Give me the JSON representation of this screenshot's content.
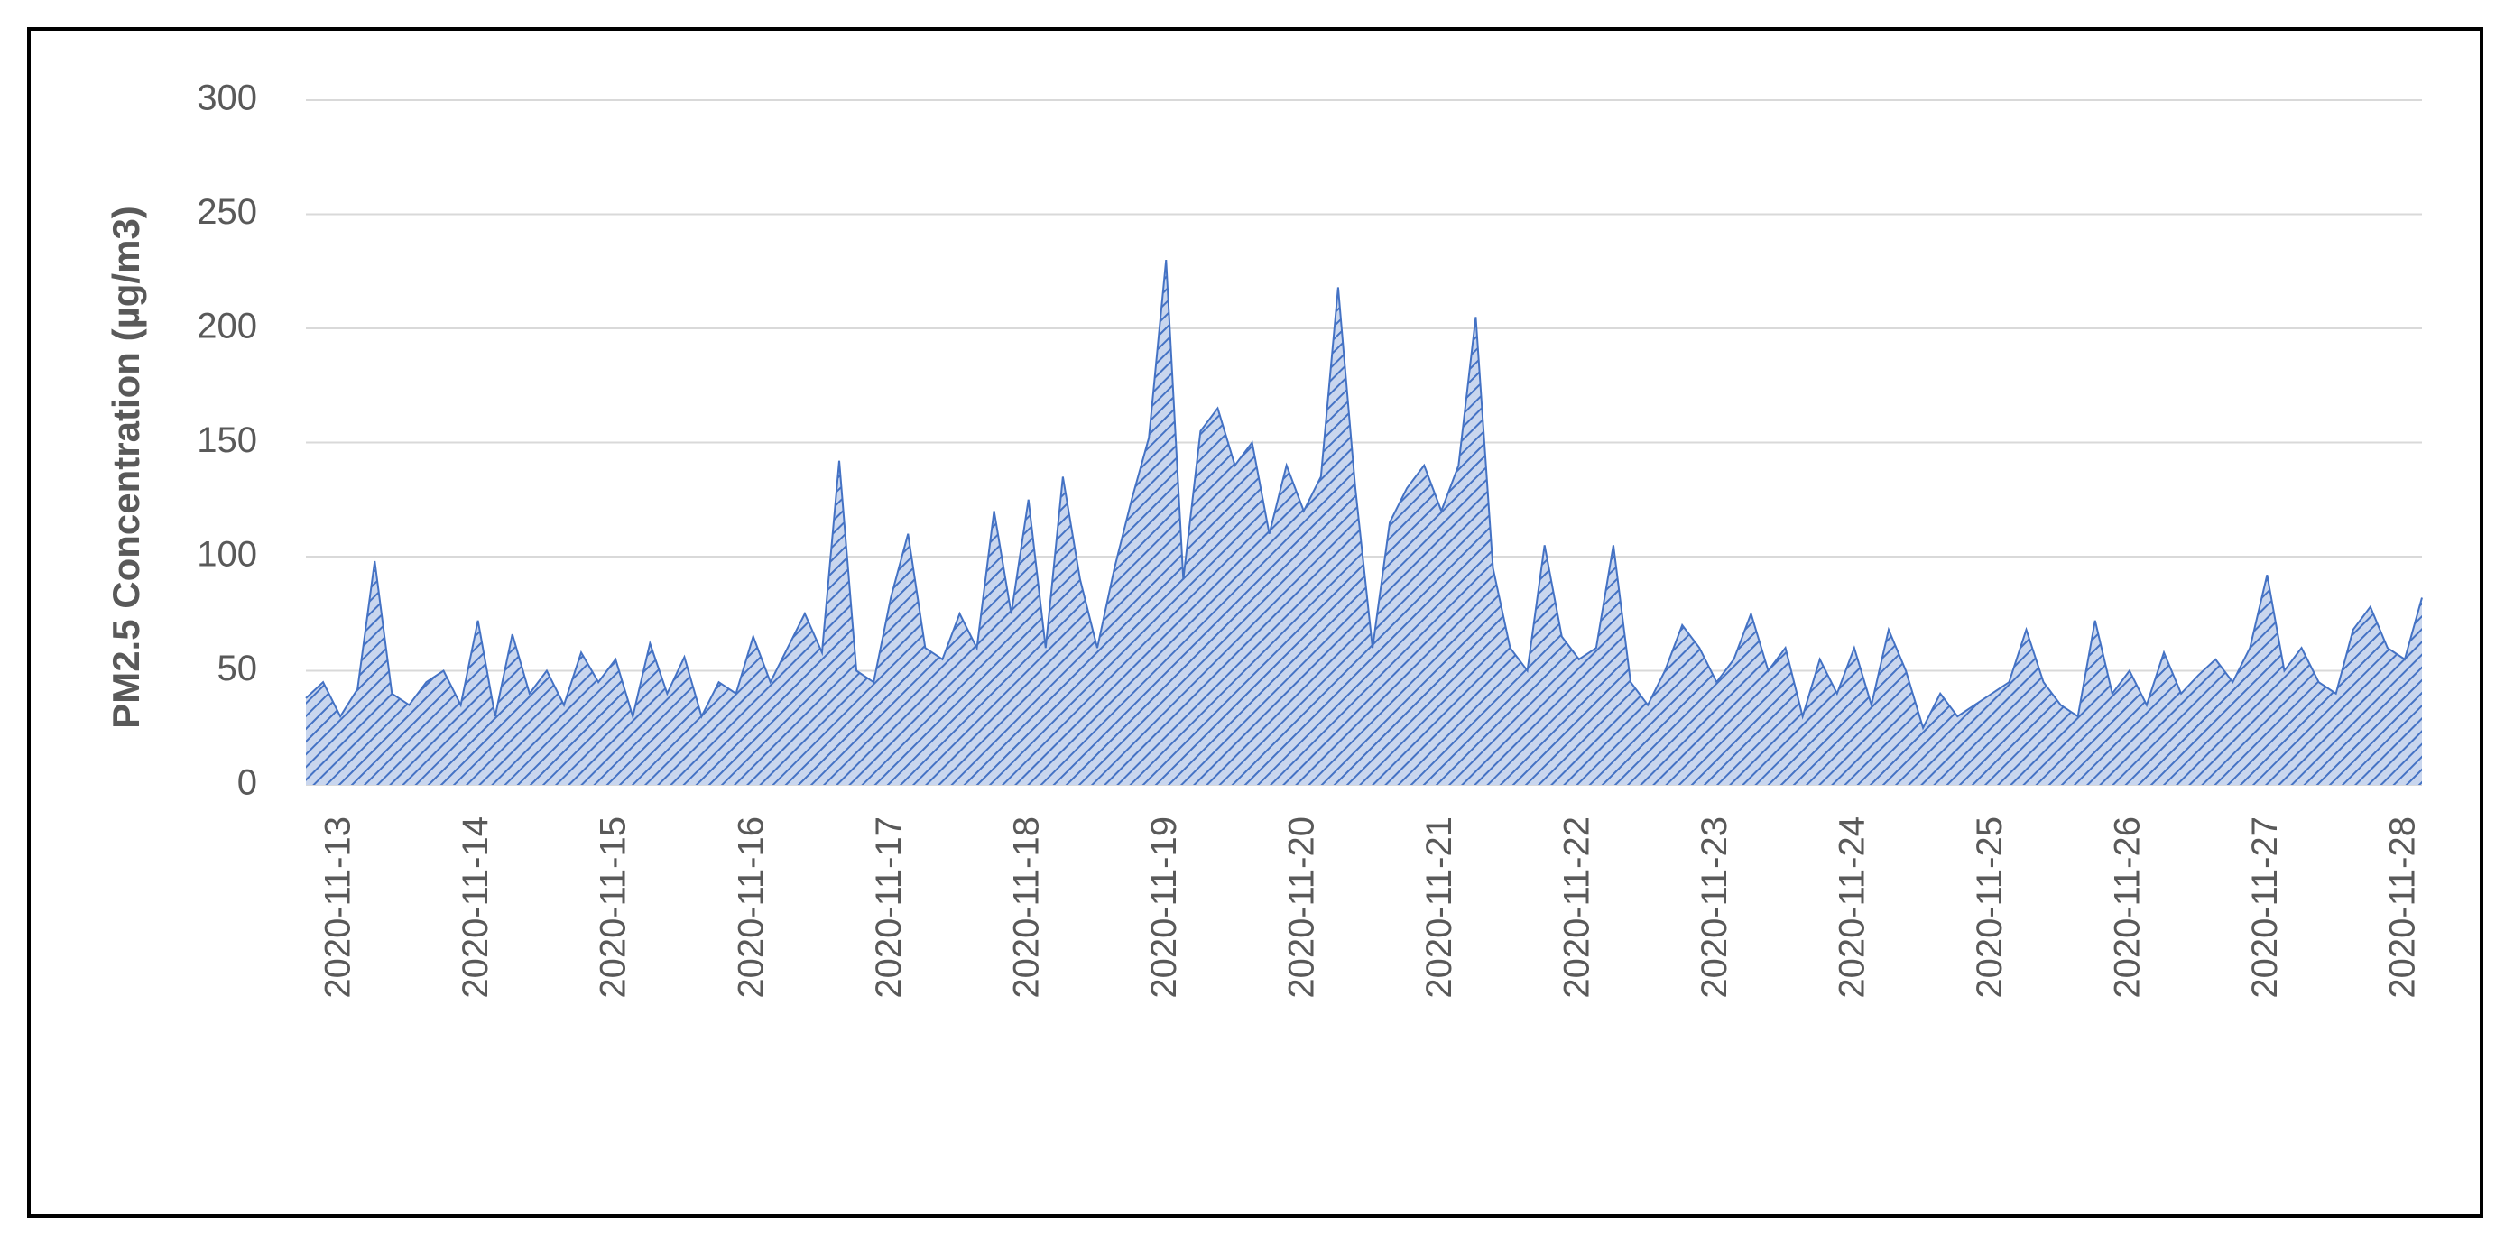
{
  "chart_data": {
    "type": "area",
    "ylabel": "PM2.5 Concentration (µg/m3)",
    "categories": [
      null,
      null,
      "2020-11-13",
      null,
      null,
      null,
      null,
      null,
      null,
      null,
      "2020-11-14",
      null,
      null,
      null,
      null,
      null,
      null,
      null,
      "2020-11-15",
      null,
      null,
      null,
      null,
      null,
      null,
      null,
      "2020-11-16",
      null,
      null,
      null,
      null,
      null,
      null,
      null,
      "2020-11-17",
      null,
      null,
      null,
      null,
      null,
      null,
      null,
      "2020-11-18",
      null,
      null,
      null,
      null,
      null,
      null,
      null,
      "2020-11-19",
      null,
      null,
      null,
      null,
      null,
      null,
      null,
      "2020-11-20",
      null,
      null,
      null,
      null,
      null,
      null,
      null,
      "2020-11-21",
      null,
      null,
      null,
      null,
      null,
      null,
      null,
      "2020-11-22",
      null,
      null,
      null,
      null,
      null,
      null,
      null,
      "2020-11-23",
      null,
      null,
      null,
      null,
      null,
      null,
      null,
      "2020-11-24",
      null,
      null,
      null,
      null,
      null,
      null,
      null,
      "2020-11-25",
      null,
      null,
      null,
      null,
      null,
      null,
      null,
      "2020-11-26",
      null,
      null,
      null,
      null,
      null,
      null,
      null,
      "2020-11-27",
      null,
      null,
      null,
      null,
      null,
      null,
      null,
      "2020-11-28",
      null
    ],
    "values": [
      38,
      45,
      30,
      42,
      98,
      40,
      35,
      45,
      50,
      35,
      72,
      30,
      66,
      40,
      50,
      35,
      58,
      45,
      55,
      30,
      62,
      40,
      56,
      30,
      45,
      40,
      65,
      45,
      60,
      75,
      58,
      142,
      50,
      45,
      82,
      110,
      60,
      55,
      75,
      60,
      120,
      75,
      125,
      60,
      135,
      90,
      60,
      95,
      125,
      152,
      230,
      90,
      155,
      165,
      140,
      150,
      110,
      140,
      120,
      135,
      218,
      130,
      60,
      115,
      130,
      140,
      120,
      140,
      205,
      95,
      60,
      50,
      105,
      65,
      55,
      60,
      105,
      45,
      35,
      50,
      70,
      60,
      45,
      55,
      75,
      50,
      60,
      30,
      55,
      40,
      60,
      35,
      68,
      50,
      25,
      40,
      30,
      35,
      40,
      45,
      68,
      45,
      35,
      30,
      72,
      40,
      50,
      35,
      58,
      40,
      48,
      55,
      45,
      60,
      92,
      50,
      60,
      45,
      40,
      68,
      78,
      60,
      55,
      82
    ],
    "color": "#4472c4",
    "ylim": [
      0,
      300
    ],
    "yticks": [
      0,
      50,
      100,
      150,
      200,
      250,
      300
    ],
    "grid": true
  }
}
